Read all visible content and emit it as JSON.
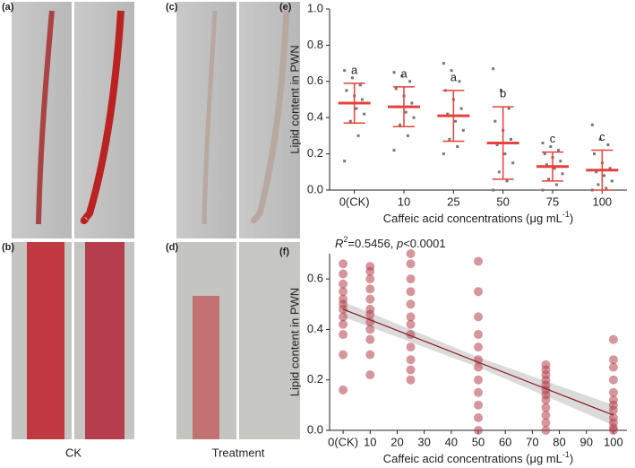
{
  "panels": {
    "a": "(a)",
    "b": "(b)",
    "c": "(c)",
    "d": "(d)",
    "ck": "CK",
    "treatment": "Treatment"
  },
  "chart_data": [
    {
      "type": "dotplot",
      "panel": "(e)",
      "y_label": "Lipid content in PWN",
      "x_label": "Caffeic acid concentrations (μg mL",
      "x_label_sup": "-1",
      "x_label_end": ")",
      "categories": [
        "0(CK)",
        "10",
        "25",
        "50",
        "75",
        "100"
      ],
      "values": [
        0.48,
        0.46,
        0.41,
        0.26,
        0.13,
        0.11
      ],
      "sd": [
        0.11,
        0.11,
        0.14,
        0.2,
        0.08,
        0.11
      ],
      "letters": [
        "a",
        "a",
        "a",
        "b",
        "c",
        "c"
      ],
      "points": [
        [
          0.16,
          0.3,
          0.38,
          0.42,
          0.45,
          0.48,
          0.5,
          0.52,
          0.55,
          0.58,
          0.62,
          0.66
        ],
        [
          0.22,
          0.3,
          0.36,
          0.4,
          0.43,
          0.46,
          0.48,
          0.52,
          0.56,
          0.6,
          0.63,
          0.65
        ],
        [
          0.2,
          0.24,
          0.28,
          0.33,
          0.38,
          0.42,
          0.45,
          0.5,
          0.55,
          0.6,
          0.66,
          0.7
        ],
        [
          0,
          0.05,
          0.1,
          0.15,
          0.2,
          0.25,
          0.28,
          0.33,
          0.38,
          0.45,
          0.55,
          0.67
        ],
        [
          0,
          0.03,
          0.06,
          0.09,
          0.12,
          0.14,
          0.16,
          0.18,
          0.2,
          0.22,
          0.24,
          0.26
        ],
        [
          0,
          0.01,
          0.03,
          0.05,
          0.08,
          0.1,
          0.12,
          0.15,
          0.2,
          0.25,
          0.28,
          0.36
        ]
      ],
      "point_color": "#777777",
      "color": "#e8403a",
      "ylim": [
        0,
        1
      ],
      "yticks": [
        {
          "value": 0,
          "label": "0.0"
        },
        0.2,
        0.4,
        0.6,
        0.8,
        {
          "value": 1,
          "label": "1.0"
        }
      ]
    },
    {
      "type": "scatter",
      "panel": "(f)",
      "y_label": "Lipid content in PWN",
      "x_label": "Caffeic acid concentrations (μg mL",
      "x_label_sup": "-1",
      "x_label_end": ")",
      "r2_label": "R",
      "r2_sup": "2",
      "r2_value": "=0.5456, ",
      "p_label": "p",
      "p_value": "<0.0001",
      "x": [
        0,
        0,
        0,
        0,
        0,
        0,
        0,
        0,
        0,
        0,
        0,
        0,
        10,
        10,
        10,
        10,
        10,
        10,
        10,
        10,
        10,
        10,
        10,
        10,
        25,
        25,
        25,
        25,
        25,
        25,
        25,
        25,
        25,
        25,
        25,
        25,
        50,
        50,
        50,
        50,
        50,
        50,
        50,
        50,
        50,
        50,
        50,
        50,
        75,
        75,
        75,
        75,
        75,
        75,
        75,
        75,
        75,
        75,
        75,
        75,
        100,
        100,
        100,
        100,
        100,
        100,
        100,
        100,
        100,
        100,
        100,
        100
      ],
      "y": [
        0.16,
        0.3,
        0.38,
        0.42,
        0.45,
        0.48,
        0.5,
        0.52,
        0.55,
        0.58,
        0.62,
        0.66,
        0.22,
        0.3,
        0.36,
        0.4,
        0.43,
        0.46,
        0.48,
        0.52,
        0.56,
        0.6,
        0.63,
        0.65,
        0.2,
        0.24,
        0.28,
        0.33,
        0.38,
        0.42,
        0.45,
        0.5,
        0.55,
        0.6,
        0.66,
        0.7,
        0,
        0.05,
        0.1,
        0.15,
        0.2,
        0.25,
        0.28,
        0.33,
        0.38,
        0.45,
        0.55,
        0.67,
        0,
        0.03,
        0.06,
        0.09,
        0.12,
        0.14,
        0.16,
        0.18,
        0.2,
        0.22,
        0.24,
        0.26,
        0,
        0.01,
        0.03,
        0.05,
        0.08,
        0.1,
        0.12,
        0.15,
        0.2,
        0.25,
        0.28,
        0.36
      ],
      "color": "#b5404a",
      "fit": {
        "x": [
          0,
          100
        ],
        "y": [
          0.48,
          0.06
        ],
        "color": "#8b1a1a"
      },
      "band": {
        "x": [
          0,
          50,
          100
        ],
        "lower": [
          0.45,
          0.25,
          0.02
        ],
        "upper": [
          0.51,
          0.29,
          0.1
        ]
      },
      "xlim": [
        -5,
        105
      ],
      "xticks": [
        {
          "value": 0,
          "label": "0(CK)"
        },
        10,
        20,
        30,
        40,
        50,
        60,
        70,
        80,
        90,
        100
      ],
      "ylim": [
        0,
        0.7
      ],
      "yticks": [
        {
          "value": 0,
          "label": "0.0"
        },
        0.2,
        0.4,
        0.6
      ]
    }
  ]
}
